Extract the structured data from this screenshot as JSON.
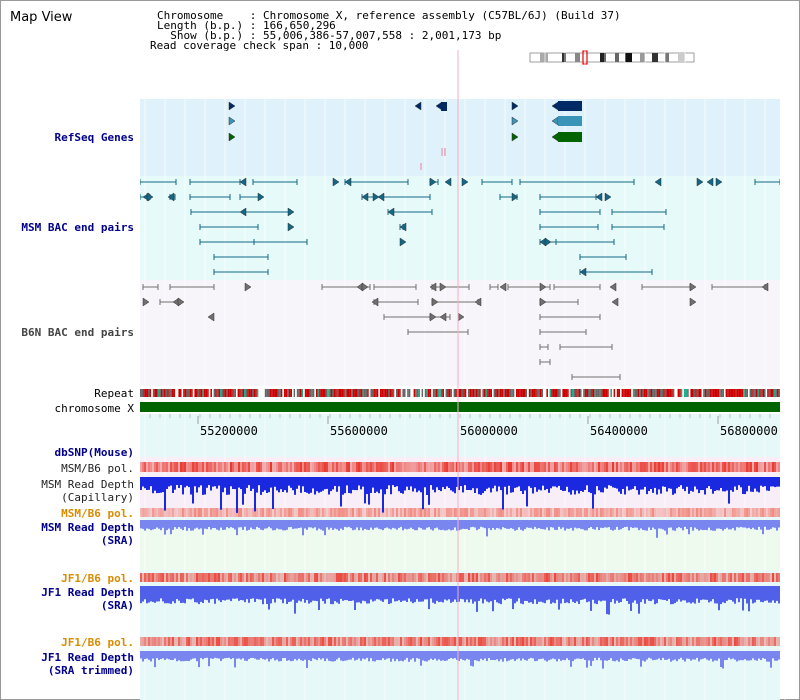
{
  "title": "Map View",
  "header": {
    "line1": "Chromosome    : Chromosome X, reference assembly (C57BL/6J) (Build 37)",
    "line2": "Length (b.p.) : 166,650,296",
    "line3": "  Show (b.p.) : 55,006,386-57,007,558 : 2,001,173 bp",
    "line4": "Read coverage check span : 10,000"
  },
  "tracks": {
    "refseq": "RefSeq Genes",
    "msm_bac": "MSM BAC end pairs",
    "b6n_bac": "B6N BAC end pairs",
    "repeat": "Repeat",
    "chromosome": "chromosome X",
    "dbsnp": "dbSNP(Mouse)",
    "msm_pol": "MSM/B6 pol.",
    "msm_depth_cap_1": "MSM Read Depth",
    "msm_depth_cap_2": "(Capillary)",
    "msm_pol2": "MSM/B6 pol.",
    "msm_depth_sra_1": "MSM Read Depth",
    "msm_depth_sra_2": "(SRA)",
    "jf1_pol": "JF1/B6 pol.",
    "jf1_depth_1": "JF1 Read Depth",
    "jf1_depth_2": "(SRA)",
    "jf1_pol2": "JF1/B6 pol.",
    "jf1_trim_1": "JF1 Read Depth",
    "jf1_trim_2": "(SRA trimmed)"
  },
  "axis": {
    "ticks": [
      "55200000",
      "55600000",
      "56000000",
      "56400000",
      "56800000"
    ]
  },
  "colors": {
    "refseq_bg": "#dff1fa",
    "msm_bac_bg": "#e6fafa",
    "b6n_bac_bg": "#f8f5fa",
    "gene_navy": "#002a66",
    "gene_teal": "#3a94b8",
    "gene_green": "#006400",
    "bac_msm": "#126886",
    "bac_b6n": "#707070",
    "chrom": "#006400",
    "pol": "#f08080",
    "depth_cap": "#1a28e0",
    "depth_sra": "#7a86f0"
  }
}
